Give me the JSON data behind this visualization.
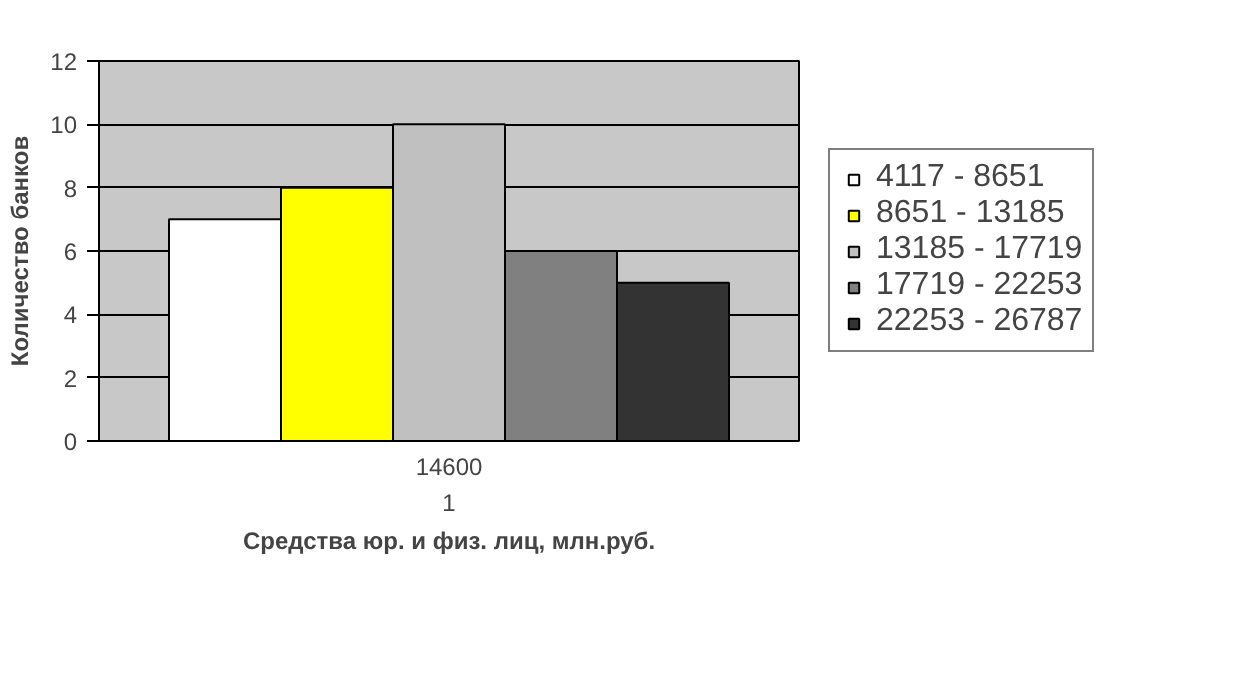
{
  "chart_data": {
    "type": "bar",
    "xlabel": "Средства юр. и физ. лиц, млн.руб.",
    "ylabel": "Количество банков",
    "categories": [
      "1"
    ],
    "series": [
      {
        "name": "4117 - 8651",
        "color": "#ffffff",
        "values": [
          7
        ]
      },
      {
        "name": "8651 - 13185",
        "color": "#ffff00",
        "values": [
          8
        ]
      },
      {
        "name": "13185 - 17719",
        "color": "#c0c0c0",
        "values": [
          10
        ]
      },
      {
        "name": "17719 - 22253",
        "color": "#808080",
        "values": [
          6
        ]
      },
      {
        "name": "22253 - 26787",
        "color": "#333333",
        "values": [
          5
        ]
      }
    ],
    "annotations": [
      "14600"
    ],
    "ylim": [
      0,
      12
    ],
    "yticks": [
      0,
      2,
      4,
      6,
      8,
      10,
      12
    ],
    "grid": "y",
    "legend": "right"
  }
}
